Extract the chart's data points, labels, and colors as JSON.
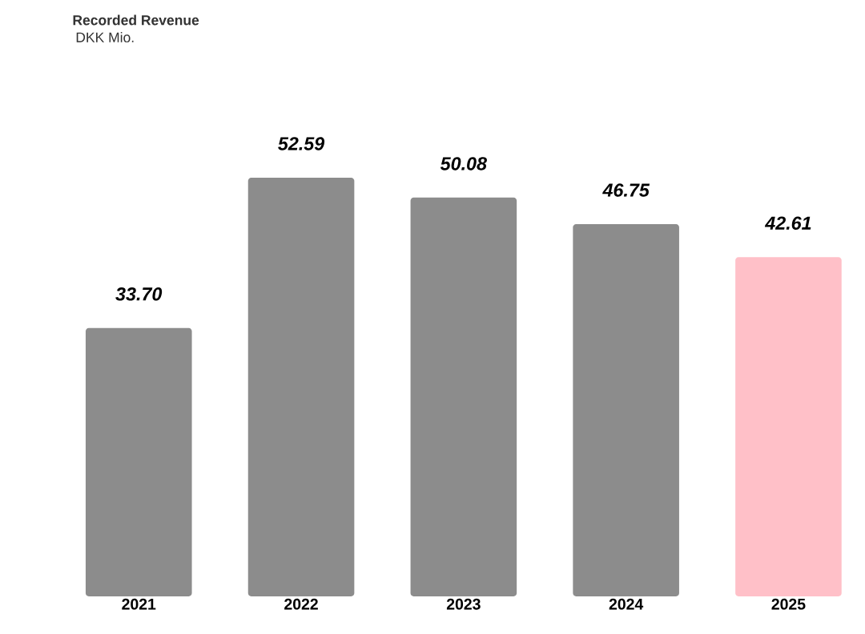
{
  "chart_data": {
    "type": "bar",
    "title": "Recorded Revenue",
    "subtitle": "DKK Mio.",
    "categories": [
      "2021",
      "2022",
      "2023",
      "2024",
      "2025"
    ],
    "values": [
      33.7,
      52.59,
      50.08,
      46.75,
      42.61
    ],
    "value_labels": [
      "33.70",
      "52.59",
      "50.08",
      "46.75",
      "42.61"
    ],
    "colors": [
      "#8c8c8c",
      "#8c8c8c",
      "#8c8c8c",
      "#8c8c8c",
      "#ffc0c8"
    ]
  }
}
